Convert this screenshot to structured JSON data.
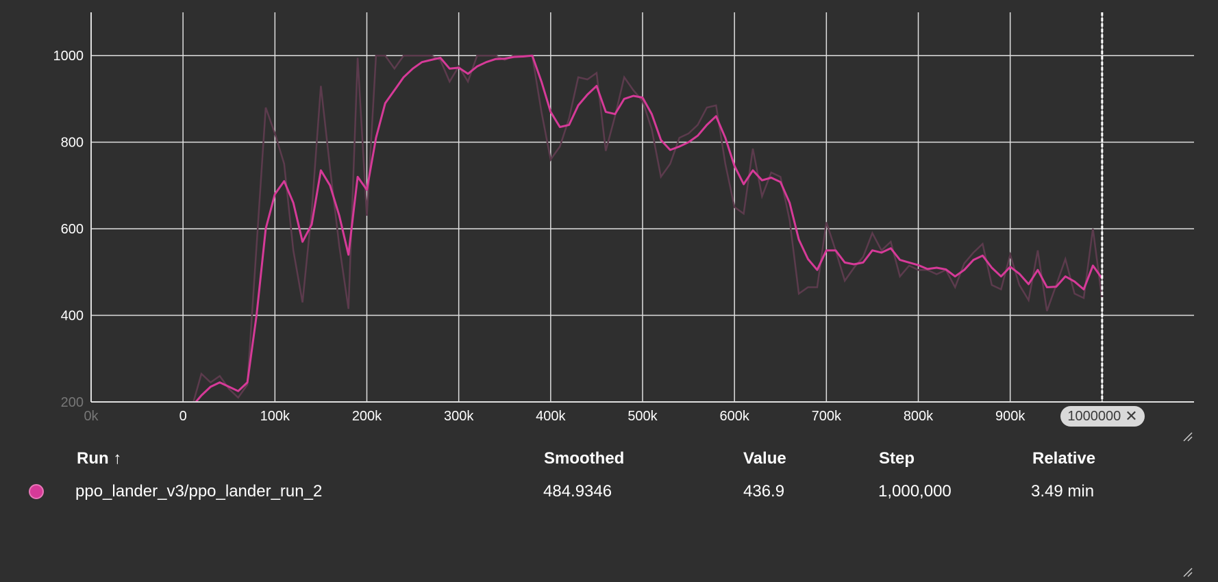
{
  "chart_data": {
    "type": "line",
    "xlim": [
      -100000,
      1100000
    ],
    "ylim": [
      200,
      1100
    ],
    "x_ticks": [
      "0k",
      "0",
      "100k",
      "200k",
      "300k",
      "400k",
      "500k",
      "600k",
      "700k",
      "800k",
      "900k",
      "1"
    ],
    "y_ticks": [
      "200",
      "400",
      "600",
      "800",
      "1000"
    ],
    "grid": true,
    "cursor_step": 1000000,
    "cursor_label": "1000000",
    "colors": {
      "smoothed": "#d63a98",
      "raw": "#5c3b4d",
      "background": "#2f2f2f",
      "grid": "#e0e0e0"
    },
    "series": [
      {
        "name": "ppo_lander_v3/ppo_lander_run_2",
        "raw": [
          [
            10000,
            190
          ],
          [
            20000,
            265
          ],
          [
            30000,
            245
          ],
          [
            40000,
            260
          ],
          [
            50000,
            230
          ],
          [
            60000,
            210
          ],
          [
            70000,
            240
          ],
          [
            80000,
            560
          ],
          [
            90000,
            880
          ],
          [
            100000,
            820
          ],
          [
            110000,
            750
          ],
          [
            120000,
            550
          ],
          [
            130000,
            430
          ],
          [
            140000,
            640
          ],
          [
            150000,
            930
          ],
          [
            160000,
            740
          ],
          [
            170000,
            560
          ],
          [
            180000,
            415
          ],
          [
            190000,
            995
          ],
          [
            200000,
            630
          ],
          [
            210000,
            1000
          ],
          [
            220000,
            1000
          ],
          [
            230000,
            970
          ],
          [
            240000,
            1000
          ],
          [
            250000,
            1000
          ],
          [
            260000,
            1000
          ],
          [
            270000,
            1000
          ],
          [
            280000,
            990
          ],
          [
            290000,
            940
          ],
          [
            300000,
            975
          ],
          [
            310000,
            940
          ],
          [
            320000,
            1000
          ],
          [
            330000,
            1000
          ],
          [
            340000,
            1000
          ],
          [
            350000,
            990
          ],
          [
            360000,
            1000
          ],
          [
            370000,
            1000
          ],
          [
            380000,
            1000
          ],
          [
            390000,
            870
          ],
          [
            400000,
            760
          ],
          [
            410000,
            790
          ],
          [
            420000,
            855
          ],
          [
            430000,
            950
          ],
          [
            440000,
            945
          ],
          [
            450000,
            960
          ],
          [
            460000,
            780
          ],
          [
            470000,
            860
          ],
          [
            480000,
            950
          ],
          [
            490000,
            920
          ],
          [
            500000,
            895
          ],
          [
            510000,
            830
          ],
          [
            520000,
            720
          ],
          [
            530000,
            750
          ],
          [
            540000,
            810
          ],
          [
            550000,
            820
          ],
          [
            560000,
            840
          ],
          [
            570000,
            880
          ],
          [
            580000,
            885
          ],
          [
            590000,
            750
          ],
          [
            600000,
            650
          ],
          [
            610000,
            635
          ],
          [
            620000,
            785
          ],
          [
            630000,
            675
          ],
          [
            640000,
            730
          ],
          [
            650000,
            720
          ],
          [
            660000,
            620
          ],
          [
            670000,
            450
          ],
          [
            680000,
            465
          ],
          [
            690000,
            465
          ],
          [
            700000,
            615
          ],
          [
            710000,
            550
          ],
          [
            720000,
            480
          ],
          [
            730000,
            510
          ],
          [
            740000,
            535
          ],
          [
            750000,
            590
          ],
          [
            760000,
            550
          ],
          [
            770000,
            570
          ],
          [
            780000,
            490
          ],
          [
            790000,
            515
          ],
          [
            800000,
            505
          ],
          [
            810000,
            505
          ],
          [
            820000,
            495
          ],
          [
            830000,
            505
          ],
          [
            840000,
            465
          ],
          [
            850000,
            520
          ],
          [
            860000,
            545
          ],
          [
            870000,
            565
          ],
          [
            880000,
            470
          ],
          [
            890000,
            460
          ],
          [
            900000,
            540
          ],
          [
            910000,
            470
          ],
          [
            920000,
            435
          ],
          [
            930000,
            550
          ],
          [
            940000,
            410
          ],
          [
            950000,
            470
          ],
          [
            960000,
            530
          ],
          [
            970000,
            450
          ],
          [
            980000,
            440
          ],
          [
            990000,
            600
          ],
          [
            1000000,
            437
          ]
        ],
        "smoothed": [
          [
            10000,
            190
          ],
          [
            20000,
            215
          ],
          [
            30000,
            235
          ],
          [
            40000,
            245
          ],
          [
            50000,
            235
          ],
          [
            60000,
            225
          ],
          [
            70000,
            245
          ],
          [
            80000,
            400
          ],
          [
            90000,
            600
          ],
          [
            100000,
            680
          ],
          [
            110000,
            710
          ],
          [
            120000,
            660
          ],
          [
            130000,
            570
          ],
          [
            140000,
            610
          ],
          [
            150000,
            735
          ],
          [
            160000,
            700
          ],
          [
            170000,
            630
          ],
          [
            180000,
            540
          ],
          [
            190000,
            720
          ],
          [
            200000,
            690
          ],
          [
            210000,
            810
          ],
          [
            220000,
            890
          ],
          [
            230000,
            920
          ],
          [
            240000,
            950
          ],
          [
            250000,
            970
          ],
          [
            260000,
            985
          ],
          [
            270000,
            990
          ],
          [
            280000,
            995
          ],
          [
            290000,
            970
          ],
          [
            300000,
            972
          ],
          [
            310000,
            958
          ],
          [
            320000,
            975
          ],
          [
            330000,
            985
          ],
          [
            340000,
            992
          ],
          [
            350000,
            993
          ],
          [
            360000,
            997
          ],
          [
            370000,
            998
          ],
          [
            380000,
            1000
          ],
          [
            390000,
            940
          ],
          [
            400000,
            870
          ],
          [
            410000,
            835
          ],
          [
            420000,
            840
          ],
          [
            430000,
            885
          ],
          [
            440000,
            910
          ],
          [
            450000,
            930
          ],
          [
            460000,
            870
          ],
          [
            470000,
            865
          ],
          [
            480000,
            900
          ],
          [
            490000,
            907
          ],
          [
            500000,
            903
          ],
          [
            510000,
            865
          ],
          [
            520000,
            805
          ],
          [
            530000,
            782
          ],
          [
            540000,
            790
          ],
          [
            550000,
            800
          ],
          [
            560000,
            815
          ],
          [
            570000,
            840
          ],
          [
            580000,
            860
          ],
          [
            590000,
            810
          ],
          [
            600000,
            745
          ],
          [
            610000,
            703
          ],
          [
            620000,
            735
          ],
          [
            630000,
            712
          ],
          [
            640000,
            718
          ],
          [
            650000,
            708
          ],
          [
            660000,
            660
          ],
          [
            670000,
            575
          ],
          [
            680000,
            530
          ],
          [
            690000,
            505
          ],
          [
            700000,
            550
          ],
          [
            710000,
            550
          ],
          [
            720000,
            522
          ],
          [
            730000,
            518
          ],
          [
            740000,
            522
          ],
          [
            750000,
            550
          ],
          [
            760000,
            545
          ],
          [
            770000,
            555
          ],
          [
            780000,
            528
          ],
          [
            790000,
            522
          ],
          [
            800000,
            516
          ],
          [
            810000,
            507
          ],
          [
            820000,
            510
          ],
          [
            830000,
            506
          ],
          [
            840000,
            490
          ],
          [
            850000,
            505
          ],
          [
            860000,
            528
          ],
          [
            870000,
            538
          ],
          [
            880000,
            510
          ],
          [
            890000,
            490
          ],
          [
            900000,
            512
          ],
          [
            910000,
            496
          ],
          [
            920000,
            472
          ],
          [
            930000,
            505
          ],
          [
            940000,
            465
          ],
          [
            950000,
            466
          ],
          [
            960000,
            490
          ],
          [
            970000,
            478
          ],
          [
            980000,
            460
          ],
          [
            990000,
            515
          ],
          [
            1000000,
            485
          ]
        ]
      }
    ]
  },
  "table": {
    "headers": {
      "run": "Run ↑",
      "smoothed": "Smoothed",
      "value": "Value",
      "step": "Step",
      "relative": "Relative"
    },
    "rows": [
      {
        "run": "ppo_lander_v3/ppo_lander_run_2",
        "smoothed": "484.9346",
        "value": "436.9",
        "step": "1,000,000",
        "relative": "3.49 min",
        "color": "#d63a98"
      }
    ]
  }
}
